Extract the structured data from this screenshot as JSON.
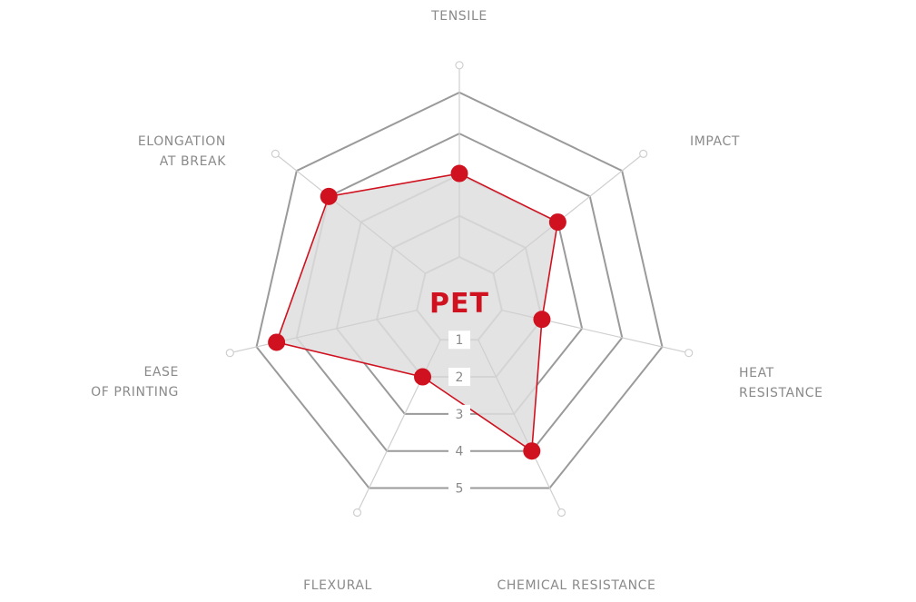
{
  "chart_data": {
    "type": "radar",
    "title": "PET",
    "axes": [
      {
        "label": [
          "TENSILE"
        ],
        "value": 3.03
      },
      {
        "label": [
          "IMPACT"
        ],
        "value": 3.0
      },
      {
        "label": [
          "HEAT",
          "RESISTANCE"
        ],
        "value": 2.0
      },
      {
        "label": [
          "CHEMICAL RESISTANCE"
        ],
        "value": 4.0
      },
      {
        "label": [
          "FLEXURAL"
        ],
        "value": 2.0
      },
      {
        "label": [
          "EASE",
          "OF PRINTING"
        ],
        "value": 4.5
      },
      {
        "label": [
          "ELONGATION",
          "AT BREAK"
        ],
        "value": 4.0
      }
    ],
    "ticks": [
      "1",
      "2",
      "3",
      "4",
      "5"
    ],
    "range": [
      0,
      5
    ],
    "colors": {
      "series": "#d0111f",
      "fill": "#dedede",
      "grid": "#9a9a9a",
      "spoke": "#cfcfcf",
      "label": "#8a8a8a"
    }
  }
}
